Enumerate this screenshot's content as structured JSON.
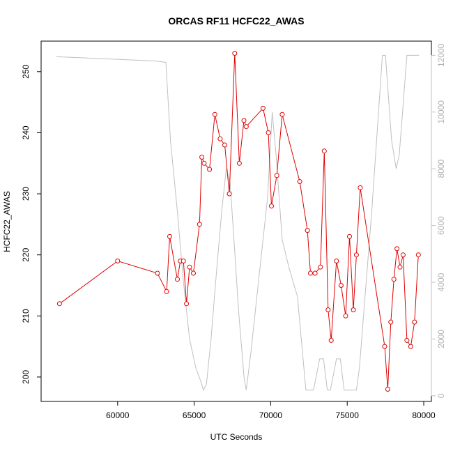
{
  "chart_data": {
    "type": "line",
    "title": "ORCAS RF11 HCFC22_AWAS",
    "xlabel": "UTC Seconds",
    "ylabel": "HCFC22_AWAS",
    "xlim": [
      55000,
      80500
    ],
    "ylim": [
      196,
      255
    ],
    "y2lim": [
      -200,
      12500
    ],
    "x_ticks": [
      60000,
      65000,
      70000,
      75000,
      80000
    ],
    "y_ticks": [
      200,
      210,
      220,
      230,
      240,
      250
    ],
    "y2_ticks": [
      0,
      2000,
      4000,
      6000,
      8000,
      10000,
      12000
    ],
    "series_color": "#e00000",
    "secondary_color": "#c0c0c0",
    "series": [
      {
        "x": [
          56200,
          60000,
          62600,
          63200,
          63400,
          63900,
          64100,
          64300,
          64500,
          64700,
          64950,
          65350,
          65500,
          65650,
          66000,
          66350,
          66700,
          67000,
          67300,
          67650,
          67950,
          68250,
          68400,
          69500,
          69850,
          70050,
          70400,
          70750,
          71900,
          72400,
          72600,
          72900,
          73250,
          73500,
          73750,
          73950,
          74300,
          74600,
          74900,
          75150,
          75400,
          75600,
          75850,
          77450,
          77650,
          77850,
          78050,
          78250,
          78450,
          78650,
          78900,
          79150,
          79400,
          79650
        ],
        "values": [
          212,
          219,
          217,
          214,
          223,
          216,
          219,
          219,
          212,
          218,
          217,
          225,
          236,
          235,
          234,
          243,
          239,
          238,
          230,
          253,
          235,
          242,
          241,
          244,
          240,
          228,
          233,
          243,
          232,
          224,
          217,
          217,
          218,
          237,
          211,
          206,
          219,
          215,
          210,
          223,
          211,
          220,
          231,
          205,
          198,
          209,
          216,
          221,
          218,
          220,
          206,
          205,
          209,
          220
        ]
      },
      {
        "x": [
          56000,
          62500,
          63150,
          63450,
          63900,
          64300,
          64700,
          65100,
          65500,
          65600,
          65800,
          66100,
          66400,
          66800,
          67100,
          67350,
          67600,
          67900,
          68250,
          68400,
          68700,
          69200,
          69800,
          70100,
          70350,
          70750,
          71200,
          71750,
          72300,
          72800,
          73200,
          73450,
          73700,
          73900,
          74300,
          74550,
          74800,
          75000,
          75600,
          75800,
          76600,
          77300,
          77500,
          77700,
          77900,
          78200,
          78400,
          78900,
          79200,
          79700
        ],
        "values": [
          11950,
          11800,
          11750,
          9000,
          6500,
          4000,
          2000,
          1000,
          400,
          200,
          400,
          2000,
          4000,
          6500,
          8000,
          7500,
          5500,
          3000,
          700,
          200,
          1500,
          4000,
          7000,
          10000,
          8500,
          5500,
          4500,
          3500,
          200,
          200,
          1300,
          1300,
          200,
          200,
          1300,
          1300,
          200,
          200,
          200,
          1000,
          6500,
          12000,
          12000,
          10500,
          9000,
          8000,
          8500,
          12000,
          12000,
          12000
        ]
      }
    ]
  }
}
